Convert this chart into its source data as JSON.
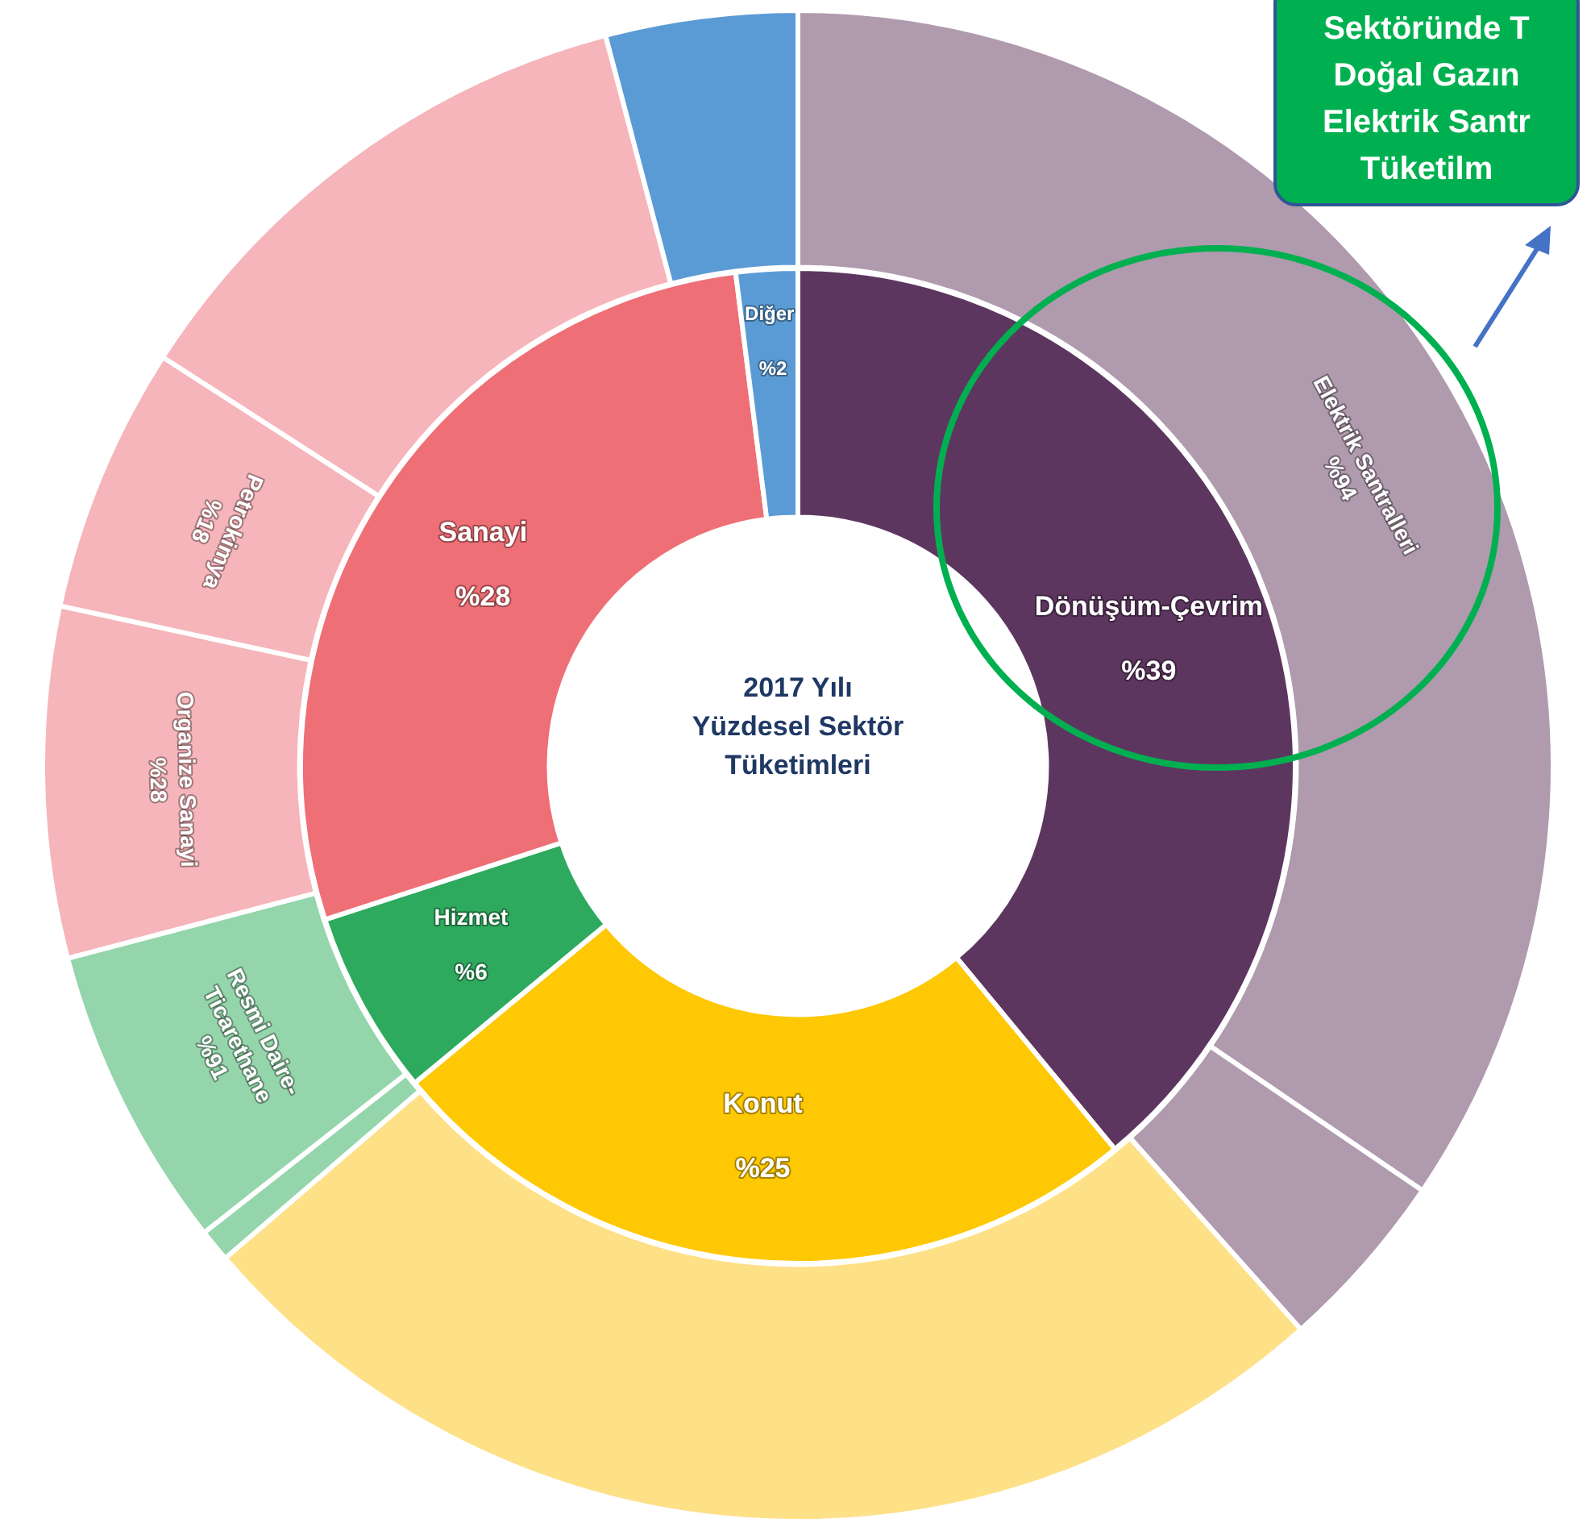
{
  "chart_data": [
    {
      "type": "donut",
      "title": "2017 Yılı\nYüzdesel Sektör\nTüketimleri",
      "categories": [
        "Dönüşüm-Çevrim",
        "Konut",
        "Hizmet",
        "Sanayi",
        "Diğer"
      ],
      "values": [
        39,
        25,
        6,
        28,
        2
      ],
      "value_labels": [
        "%39",
        "%25",
        "%6",
        "%28",
        "%2"
      ],
      "colors": [
        "#5d3660",
        "#fec804",
        "#2eaa5f",
        "#ee6f76",
        "#5b9bd5"
      ]
    },
    {
      "type": "donut",
      "annotations": [
        "Sektöründe T\nDoğal Gazın\nElektrik Santr\nTüketilm"
      ],
      "categories": [
        "Elektrik Santralleri\n%94",
        null,
        null,
        null,
        "Resmi Daire-\nTicarethane\n%91",
        "Organize Sanayi\n%28",
        "Petrokimya\n%18",
        null,
        null
      ],
      "values": [
        34.5,
        3.9,
        25.3,
        0.7,
        6.5,
        7.5,
        5.7,
        11.8,
        4.1
      ],
      "colors": [
        "#af9aae",
        "#af9aae",
        "#fee087",
        "#95d5ab",
        "#95d5ab",
        "#f5b5ba",
        "#f5b5ba",
        "#f5b5ba",
        "#5b9bd5"
      ]
    }
  ]
}
